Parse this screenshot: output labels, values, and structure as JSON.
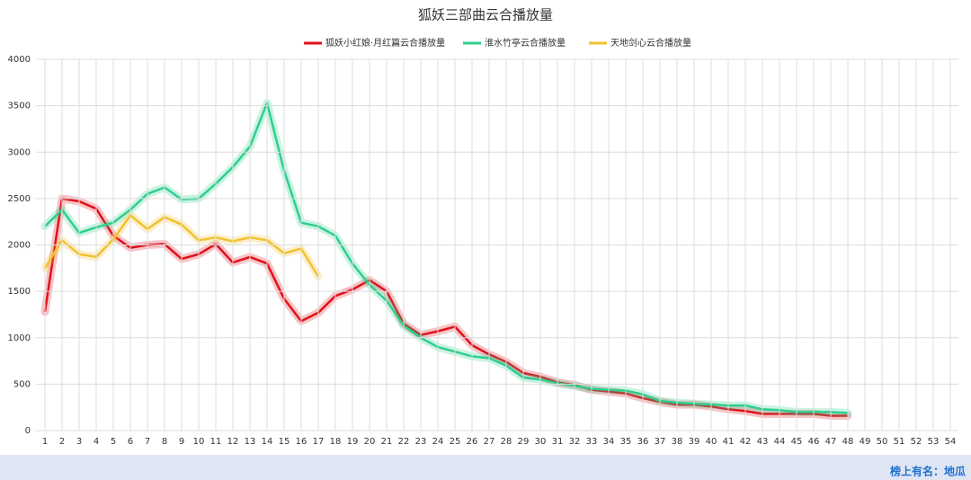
{
  "chart_data": {
    "type": "line",
    "title": "狐妖三部曲云合播放量",
    "categories": [
      "1",
      "2",
      "3",
      "4",
      "5",
      "6",
      "7",
      "8",
      "9",
      "10",
      "11",
      "12",
      "13",
      "14",
      "15",
      "16",
      "17",
      "18",
      "19",
      "20",
      "21",
      "22",
      "23",
      "24",
      "25",
      "26",
      "27",
      "28",
      "29",
      "30",
      "31",
      "32",
      "33",
      "34",
      "35",
      "36",
      "37",
      "38",
      "39",
      "40",
      "41",
      "42",
      "43",
      "44",
      "45",
      "46",
      "47",
      "48",
      "49",
      "50",
      "51",
      "52",
      "53",
      "54"
    ],
    "series": [
      {
        "name": "狐妖小红娘·月红篇云合播放量",
        "color": "#e0121c",
        "values": [
          1280,
          2500,
          2470,
          2390,
          2100,
          1970,
          2000,
          2010,
          1850,
          1900,
          2010,
          1810,
          1870,
          1800,
          1420,
          1180,
          1270,
          1450,
          1520,
          1620,
          1500,
          1150,
          1030,
          1070,
          1120,
          920,
          820,
          740,
          620,
          580,
          520,
          490,
          440,
          420,
          400,
          350,
          310,
          280,
          280,
          260,
          230,
          210,
          180,
          180,
          180,
          180,
          160,
          160,
          null,
          null,
          null,
          null,
          null,
          null
        ]
      },
      {
        "name": "淮水竹亭云合播放量",
        "color": "#2ecf8e",
        "values": [
          2200,
          2380,
          2130,
          2190,
          2240,
          2380,
          2550,
          2620,
          2490,
          2500,
          2660,
          2840,
          3060,
          3530,
          2800,
          2240,
          2200,
          2100,
          1800,
          1570,
          1400,
          1130,
          1000,
          900,
          850,
          800,
          780,
          700,
          570,
          550,
          510,
          480,
          450,
          440,
          430,
          390,
          320,
          300,
          290,
          280,
          270,
          270,
          230,
          220,
          200,
          200,
          200,
          190,
          null,
          null,
          null,
          null,
          null,
          null
        ]
      },
      {
        "name": "天地剑心云合播放量",
        "color": "#f2c12e",
        "values": [
          1750,
          2050,
          1900,
          1870,
          2060,
          2320,
          2170,
          2300,
          2220,
          2050,
          2080,
          2040,
          2080,
          2050,
          1910,
          1960,
          1660,
          null,
          null,
          null,
          null,
          null,
          null,
          null,
          null,
          null,
          null,
          null,
          null,
          null,
          null,
          null,
          null,
          null,
          null,
          null,
          null,
          null,
          null,
          null,
          null,
          null,
          null,
          null,
          null,
          null,
          null,
          null,
          null,
          null,
          null,
          null,
          null,
          null
        ]
      }
    ],
    "ylim": [
      0,
      4000
    ],
    "yticks": [
      0,
      500,
      1000,
      1500,
      2000,
      2500,
      3000,
      3500,
      4000
    ],
    "grid": true,
    "legend": "top",
    "watermark": "榜上有名：地瓜"
  }
}
